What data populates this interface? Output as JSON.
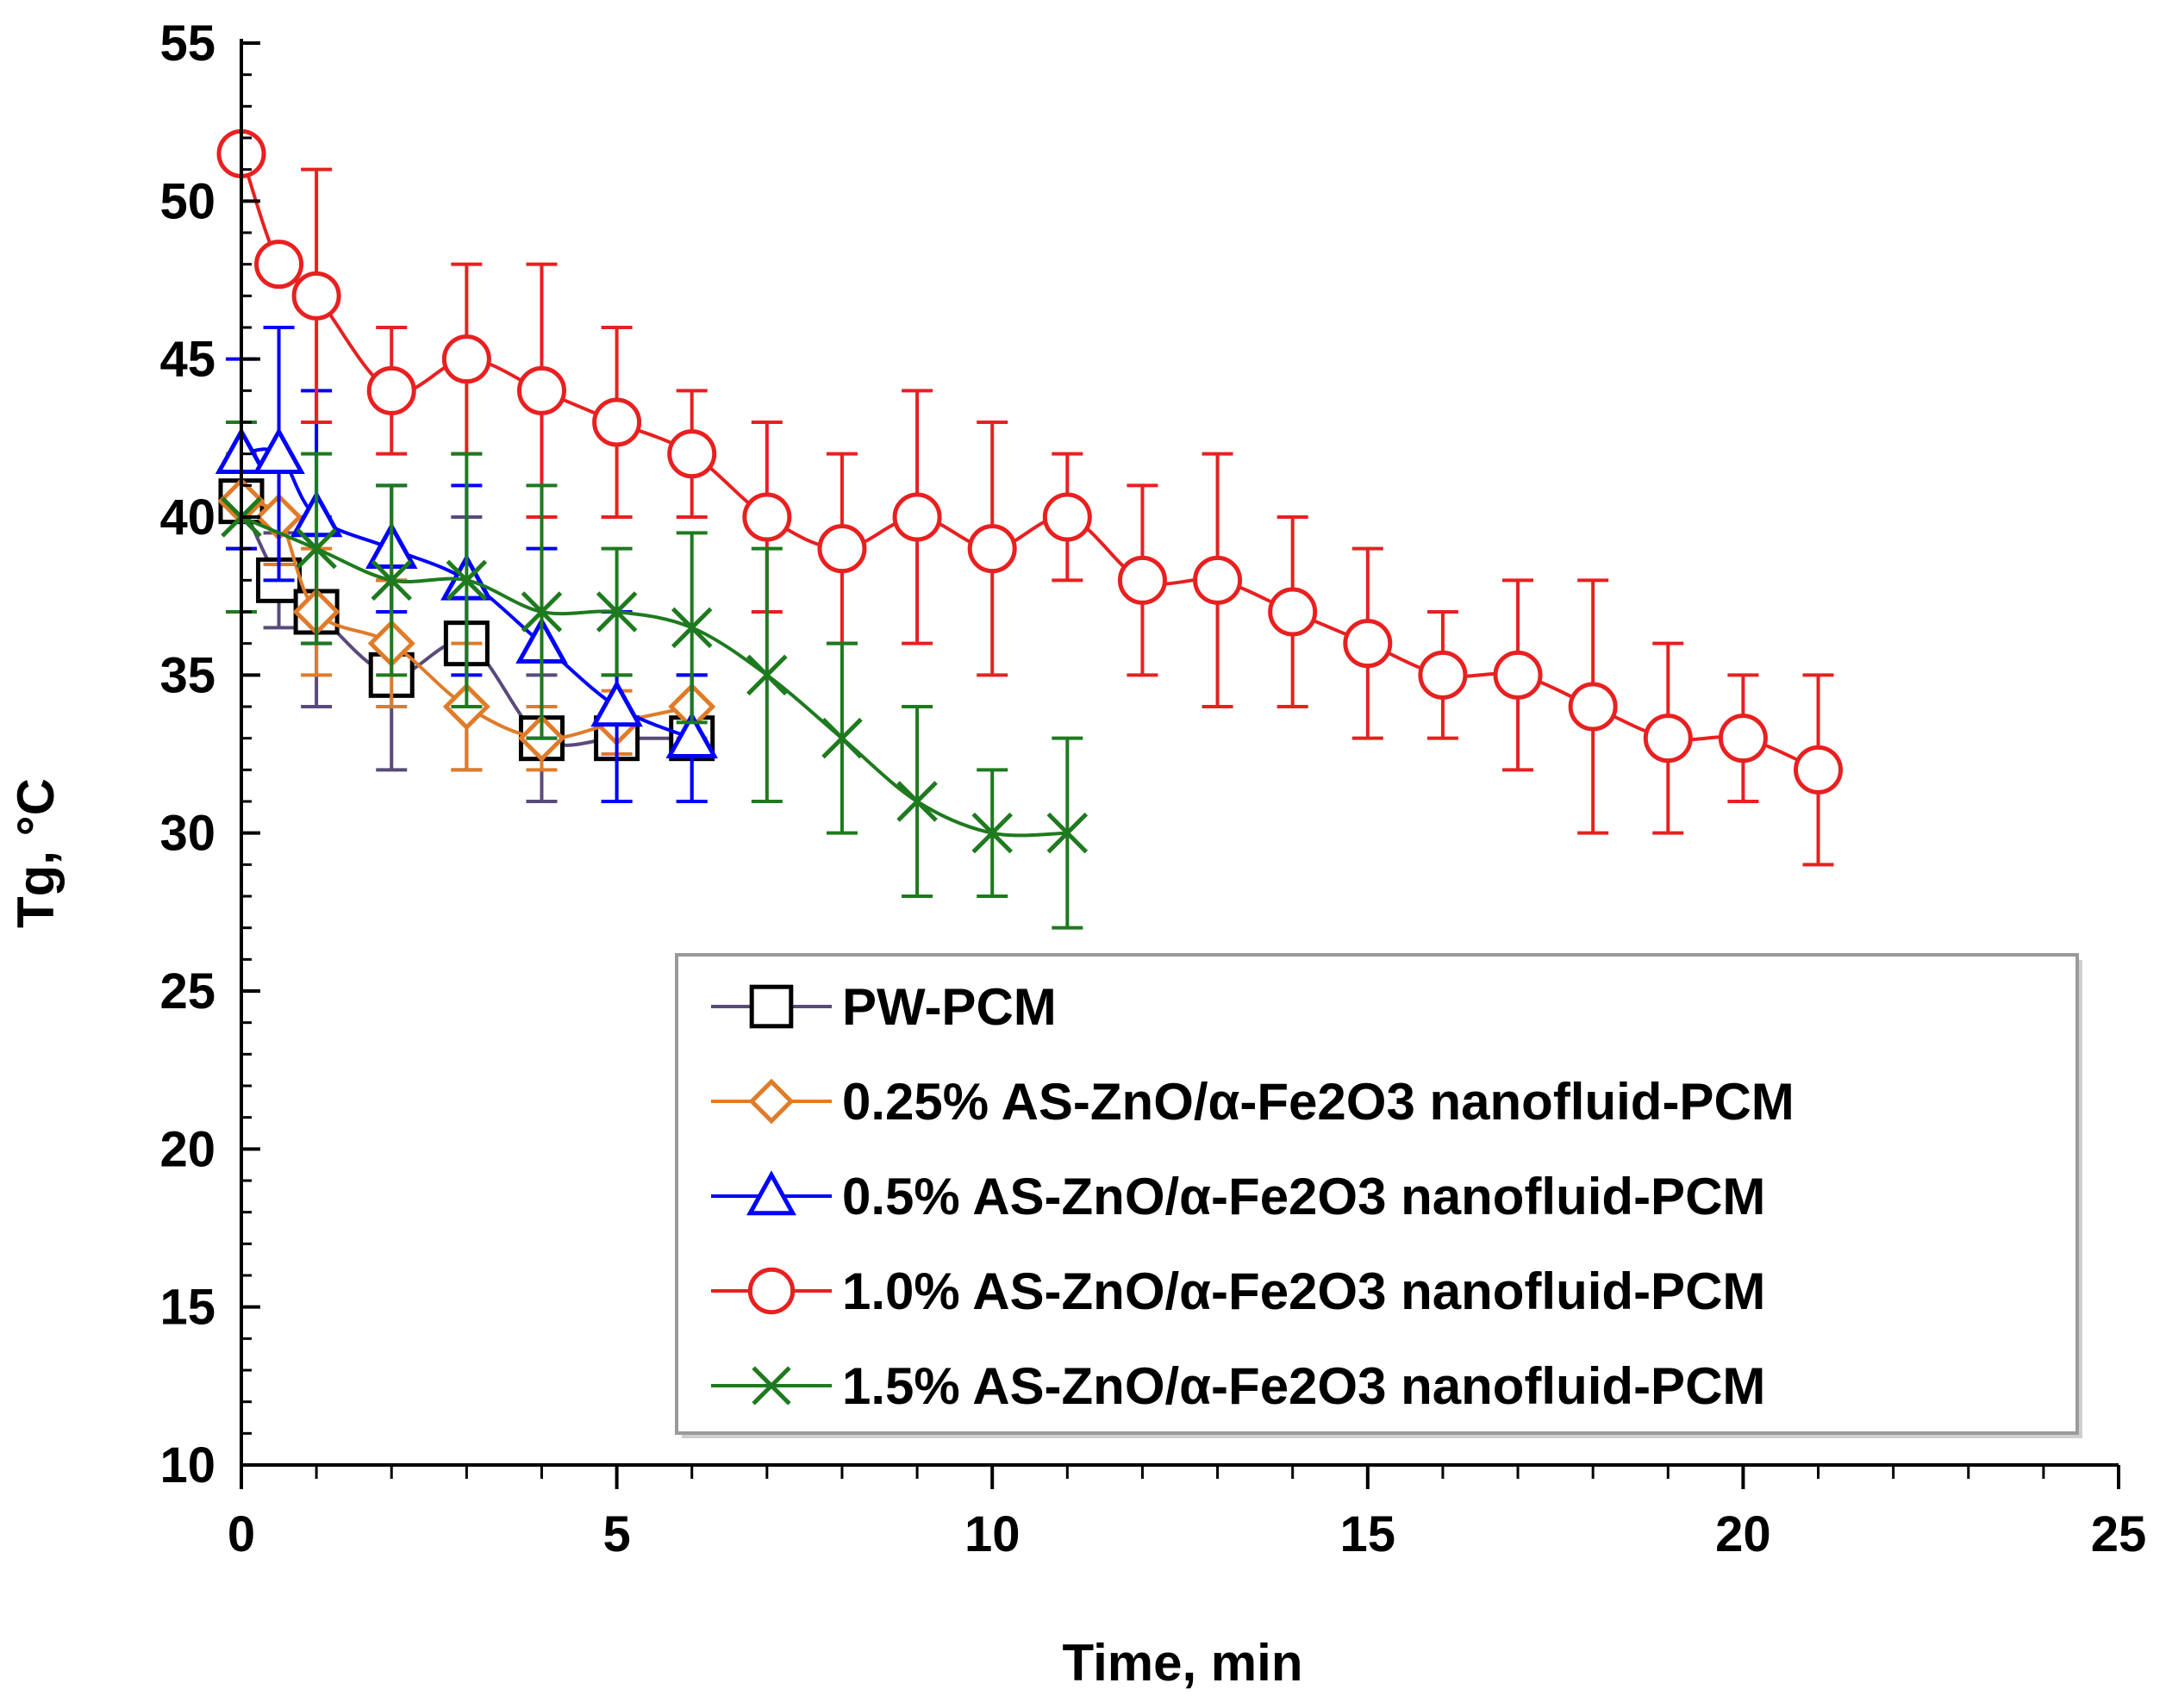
{
  "chart_data": {
    "type": "line",
    "title": "",
    "xlabel": "Time, min",
    "ylabel": "Tg, °C",
    "xlim": [
      0,
      25
    ],
    "ylim": [
      10,
      55
    ],
    "xticks": [
      0,
      5,
      10,
      15,
      20,
      25
    ],
    "yticks": [
      10,
      15,
      20,
      25,
      30,
      35,
      40,
      45,
      50,
      55
    ],
    "grid": false,
    "legend_position": "bottom-right",
    "series": [
      {
        "name": "PW-PCM",
        "color": "#5a4a7a",
        "markerColor": "#000000",
        "marker": "square",
        "x": [
          0,
          0.5,
          1,
          2,
          3,
          4,
          5,
          6
        ],
        "y": [
          40.5,
          38,
          37,
          35,
          36,
          33,
          33,
          33
        ],
        "err": [
          1.5,
          1.5,
          3,
          3,
          4,
          2,
          2,
          2
        ]
      },
      {
        "name": "0.25% AS-ZnO/α-Fe2O3  nanofluid-PCM",
        "color": "#e07b28",
        "markerColor": "#e07b28",
        "marker": "diamond",
        "x": [
          0,
          0.5,
          1,
          2,
          3,
          4,
          5,
          6
        ],
        "y": [
          40.5,
          40,
          37,
          36,
          34,
          33,
          33.5,
          34
        ],
        "err": [
          1.5,
          1.5,
          2,
          2,
          2,
          1,
          1,
          1
        ]
      },
      {
        "name": "0.5% AS-ZnO/α-Fe2O3  nanofluid-PCM",
        "color": "#0000ff",
        "markerColor": "#0000ff",
        "marker": "triangle",
        "x": [
          0,
          0.5,
          1,
          2,
          3,
          4,
          5,
          6
        ],
        "y": [
          42,
          42,
          40,
          39,
          38,
          36,
          34,
          33
        ],
        "err": [
          3,
          4,
          4,
          2,
          3,
          3,
          3,
          2
        ]
      },
      {
        "name": "1.0% AS-ZnO/α-Fe2O3  nanofluid-PCM",
        "color": "#e82020",
        "markerColor": "#e82020",
        "marker": "circle",
        "x": [
          0,
          0.5,
          1,
          2,
          3,
          4,
          5,
          6,
          7,
          8,
          9,
          10,
          11,
          12,
          13,
          14,
          15,
          16,
          17,
          18,
          19,
          20,
          21
        ],
        "y": [
          51.5,
          48,
          47,
          44,
          45,
          44,
          43,
          42,
          40,
          39,
          40,
          39,
          40,
          38,
          38,
          37,
          36,
          35,
          35,
          34,
          33,
          33,
          32
        ],
        "err": [
          0,
          0,
          4,
          2,
          3,
          4,
          3,
          2,
          3,
          3,
          4,
          4,
          2,
          3,
          4,
          3,
          3,
          2,
          3,
          4,
          3,
          2,
          3
        ]
      },
      {
        "name": "1.5% AS-ZnO/α-Fe2O3  nanofluid-PCM",
        "color": "#1e7a1e",
        "markerColor": "#1e7a1e",
        "marker": "cross",
        "x": [
          0,
          1,
          2,
          3,
          4,
          5,
          6,
          7,
          8,
          9,
          10,
          11
        ],
        "y": [
          40,
          39,
          38,
          38,
          37,
          37,
          36.5,
          35,
          33,
          31,
          30,
          30
        ],
        "err": [
          3,
          3,
          3,
          4,
          4,
          2,
          3,
          4,
          3,
          3,
          2,
          3
        ]
      }
    ]
  }
}
